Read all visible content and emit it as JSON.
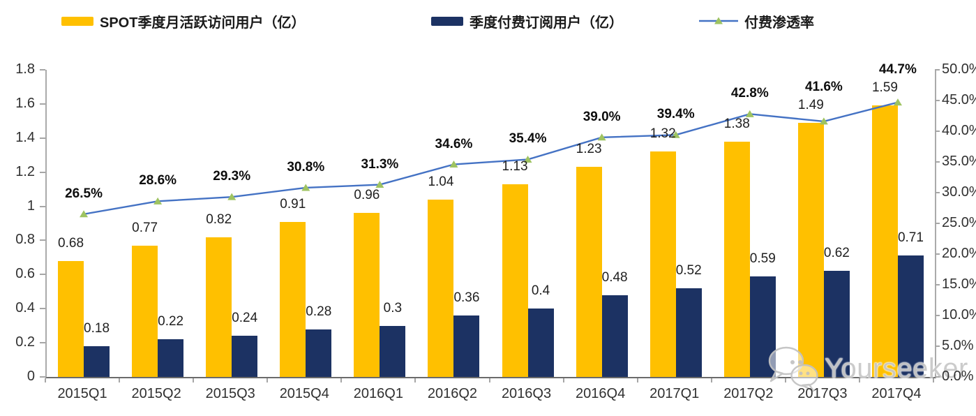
{
  "chart_data": {
    "type": "bar",
    "subtype": "combo-bar-line-dual-axis",
    "categories": [
      "2015Q1",
      "2015Q2",
      "2015Q3",
      "2015Q4",
      "2016Q1",
      "2016Q2",
      "2016Q3",
      "2016Q4",
      "2017Q1",
      "2017Q2",
      "2017Q3",
      "2017Q4"
    ],
    "series": [
      {
        "name": "SPOT季度月活跃访问用户（亿）",
        "type": "bar",
        "axis": "left",
        "color": "#FFC000",
        "values": [
          0.68,
          0.77,
          0.82,
          0.91,
          0.96,
          1.04,
          1.13,
          1.23,
          1.32,
          1.38,
          1.49,
          1.59
        ],
        "labels": [
          "0.68",
          "0.77",
          "0.82",
          "0.91",
          "0.96",
          "1.04",
          "1.13",
          "1.23",
          "1.32",
          "1.38",
          "1.49",
          "1.59"
        ]
      },
      {
        "name": "季度付费订阅用户（亿）",
        "type": "bar",
        "axis": "left",
        "color": "#1C3263",
        "values": [
          0.18,
          0.22,
          0.24,
          0.28,
          0.3,
          0.36,
          0.4,
          0.48,
          0.52,
          0.59,
          0.62,
          0.71
        ],
        "labels": [
          "0.18",
          "0.22",
          "0.24",
          "0.28",
          "0.3",
          "0.36",
          "0.4",
          "0.48",
          "0.52",
          "0.59",
          "0.62",
          "0.71"
        ]
      },
      {
        "name": "付费渗透率",
        "type": "line",
        "axis": "right",
        "color": "#4472C4",
        "marker": "triangle",
        "marker_color": "#9EC361",
        "values": [
          26.5,
          28.6,
          29.3,
          30.8,
          31.3,
          34.6,
          35.4,
          39.0,
          39.4,
          42.8,
          41.6,
          44.7
        ],
        "labels": [
          "26.5%",
          "28.6%",
          "29.3%",
          "30.8%",
          "31.3%",
          "34.6%",
          "35.4%",
          "39.0%",
          "39.4%",
          "42.8%",
          "41.6%",
          "44.7%"
        ]
      }
    ],
    "left_axis": {
      "min": 0,
      "max": 1.8,
      "step": 0.2,
      "ticks": [
        "0",
        "0.2",
        "0.4",
        "0.6",
        "0.8",
        "1",
        "1.2",
        "1.4",
        "1.6",
        "1.8"
      ]
    },
    "right_axis": {
      "min": 0,
      "max": 50,
      "step": 5,
      "ticks": [
        "0.0%",
        "5.0%",
        "10.0%",
        "15.0%",
        "20.0%",
        "25.0%",
        "30.0%",
        "35.0%",
        "40.0%",
        "45.0%",
        "50.0%"
      ]
    },
    "grid": false,
    "legend_position": "top",
    "background": "#ffffff"
  },
  "watermark": {
    "text": "Yourseeker",
    "icon": "wechat-icon"
  }
}
